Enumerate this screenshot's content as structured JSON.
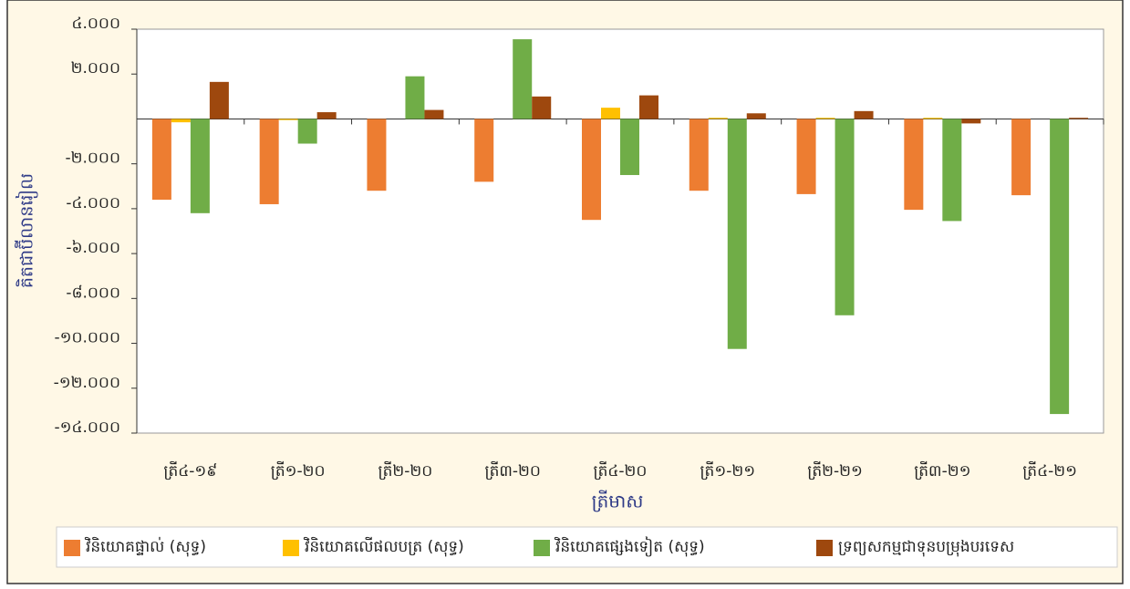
{
  "chart_data": {
    "type": "bar",
    "categories": [
      "ត្រី៤-១៩",
      "ត្រី១-២០",
      "ត្រី២-២០",
      "ត្រី៣-២០",
      "ត្រី៤-២០",
      "ត្រី១-២១",
      "ត្រី២-២១",
      "ត្រី៣-២១",
      "ត្រី៤-២១"
    ],
    "series": [
      {
        "name": "វិនិយោគផ្ទាល់ (សុទ្ធ)",
        "color": "#ED7D31",
        "values": [
          -3600,
          -3800,
          -3200,
          -2800,
          -4500,
          -3200,
          -3350,
          -4050,
          -3400
        ]
      },
      {
        "name": "វិនិយោគលើផលបត្រ (សុទ្ធ)",
        "color": "#FFC000",
        "values": [
          -150,
          -50,
          0,
          0,
          500,
          50,
          50,
          50,
          0
        ]
      },
      {
        "name": "វិនិយោគផ្សេងទៀត (សុទ្ធ)",
        "color": "#70AD47",
        "values": [
          -4200,
          -1100,
          1900,
          3550,
          -2500,
          -10250,
          -8750,
          -4550,
          -13150
        ]
      },
      {
        "name": "ទ្រព្យសកម្មជាទុនបម្រុងបរទេស",
        "color": "#9E480E",
        "values": [
          1650,
          300,
          400,
          1000,
          1050,
          250,
          350,
          -200,
          50
        ]
      }
    ],
    "ylim": [
      -14000,
      4000
    ],
    "yticks": [
      {
        "value": 4000,
        "label": "៤.០០០"
      },
      {
        "value": 2000,
        "label": "២.០០០"
      },
      {
        "value": -2000,
        "label": "-២.០០០"
      },
      {
        "value": -4000,
        "label": "-៤.០០០"
      },
      {
        "value": -6000,
        "label": "-៦.០០០"
      },
      {
        "value": -8000,
        "label": "-៨.០០០"
      },
      {
        "value": -10000,
        "label": "-១០.០០០"
      },
      {
        "value": -12000,
        "label": "-១២.០០០"
      },
      {
        "value": -14000,
        "label": "-១៤.០០០"
      }
    ],
    "y_label": "គិតជាប៊ីលានរៀល",
    "x_label": "ត្រីមាស"
  }
}
